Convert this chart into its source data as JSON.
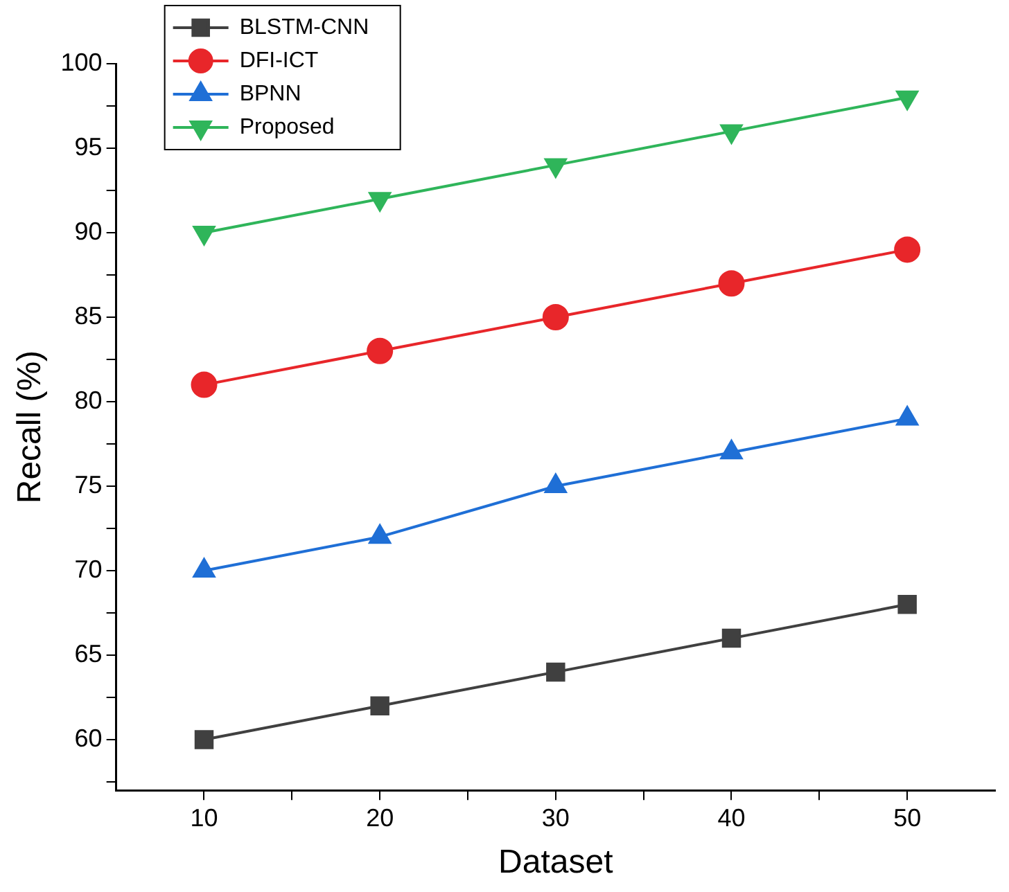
{
  "chart_data": {
    "type": "line",
    "xlabel": "Dataset",
    "ylabel": "Recall (%)",
    "x": [
      10,
      20,
      30,
      40,
      50
    ],
    "series": [
      {
        "name": "BLSTM-CNN",
        "color": "#404040",
        "marker": "square",
        "values": [
          60,
          62,
          64,
          66,
          68
        ]
      },
      {
        "name": "DFI-ICT",
        "color": "#e8262a",
        "marker": "circle",
        "values": [
          81,
          83,
          85,
          87,
          89
        ]
      },
      {
        "name": "BPNN",
        "color": "#1f6fd6",
        "marker": "triangle",
        "values": [
          70,
          72,
          75,
          77,
          79
        ]
      },
      {
        "name": "Proposed",
        "color": "#2fb55a",
        "marker": "triangle-down",
        "values": [
          90,
          92,
          94,
          96,
          98
        ]
      }
    ],
    "xlim": [
      5,
      55
    ],
    "xticks": [
      10,
      {
        "value": 15,
        "label": null
      },
      20,
      {
        "value": 25,
        "label": null
      },
      30,
      {
        "value": 35,
        "label": null
      },
      40,
      {
        "value": 45,
        "label": null
      },
      50
    ],
    "ylim": [
      57,
      100
    ],
    "yticks": [
      {
        "value": 57.5,
        "label": null
      },
      60,
      {
        "value": 62.5,
        "label": null
      },
      65,
      {
        "value": 67.5,
        "label": null
      },
      70,
      {
        "value": 72.5,
        "label": null
      },
      75,
      {
        "value": 77.5,
        "label": null
      },
      80,
      {
        "value": 82.5,
        "label": null
      },
      85,
      {
        "value": 87.5,
        "label": null
      },
      90,
      {
        "value": 92.5,
        "label": null
      },
      95,
      {
        "value": 97.5,
        "label": null
      },
      100
    ],
    "legend": "top left",
    "grid": false,
    "line_style": "solid"
  }
}
